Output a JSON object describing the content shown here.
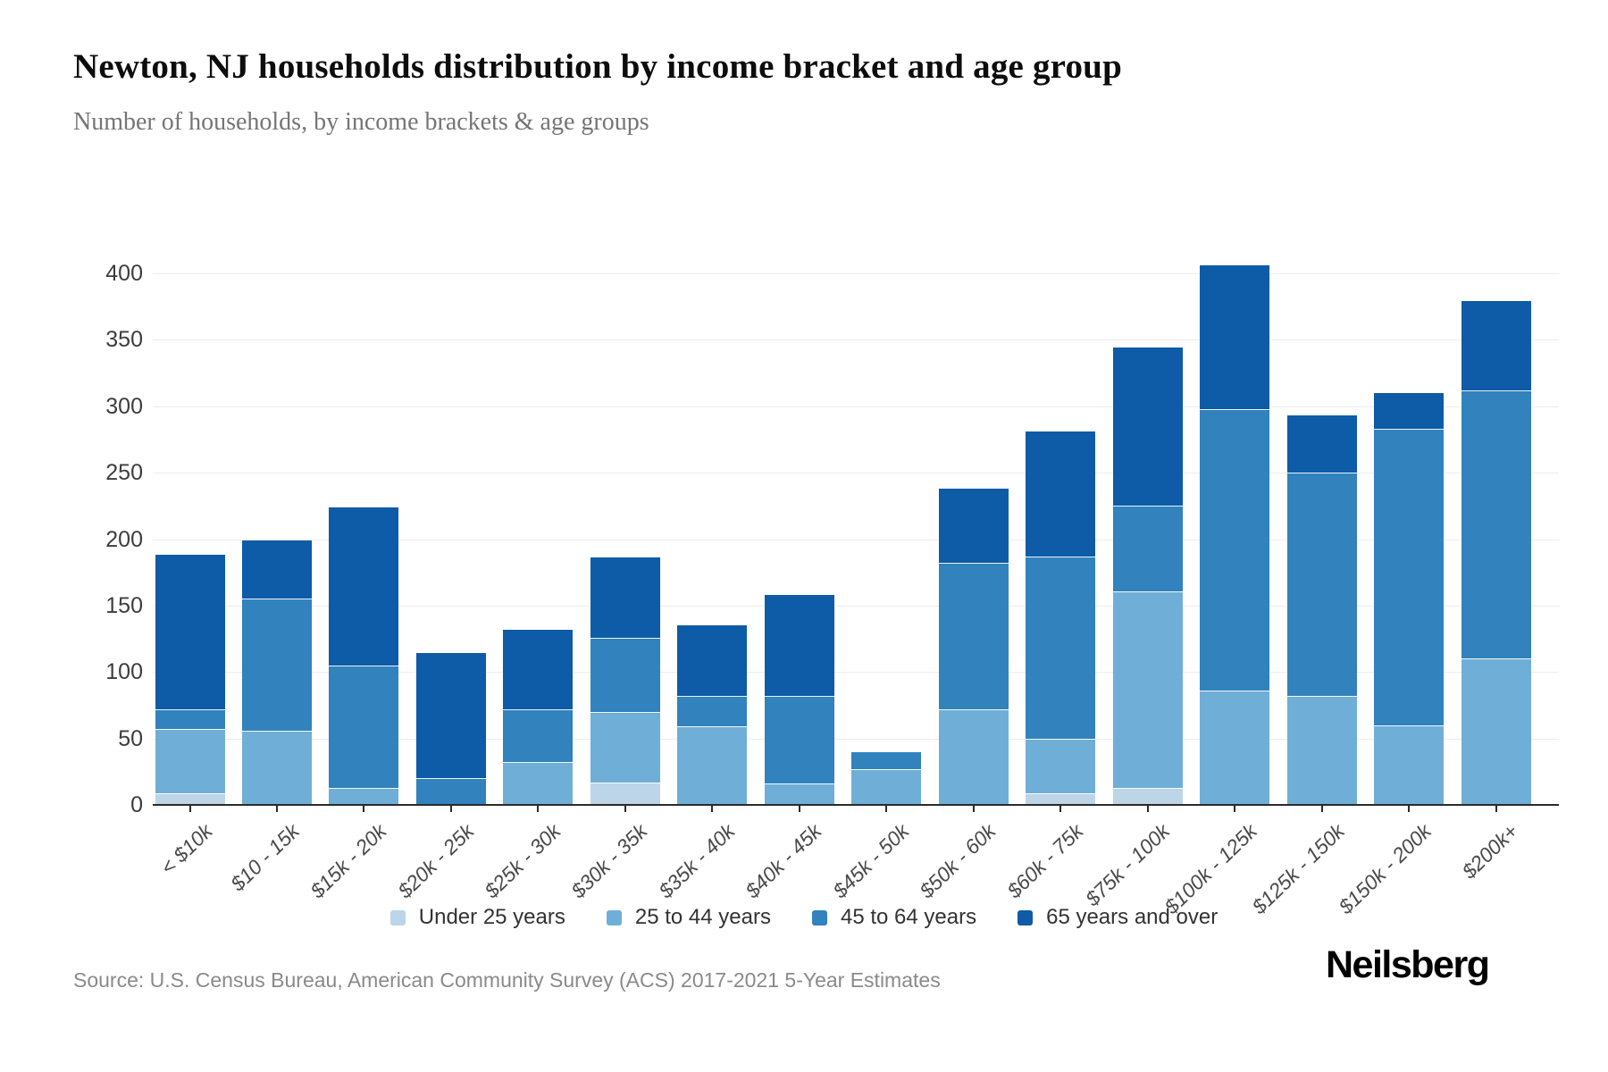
{
  "header": {
    "title": "Newton, NJ households distribution by income bracket and age group",
    "subtitle": "Number of households, by income brackets & age groups"
  },
  "chart_data": {
    "type": "bar",
    "stacked": true,
    "title": "Newton, NJ households distribution by income bracket and age group",
    "subtitle": "Number of households, by income brackets & age groups",
    "xlabel": "",
    "ylabel": "",
    "ylim": [
      0,
      400
    ],
    "ytick_step": 50,
    "grid": true,
    "legend_position": "bottom",
    "categories": [
      "< $10k",
      "$10 - 15k",
      "$15k - 20k",
      "$20k - 25k",
      "$25k - 30k",
      "$30k - 35k",
      "$35k - 40k",
      "$40k - 45k",
      "$45k - 50k",
      "$50k - 60k",
      "$60k - 75k",
      "$75k - 100k",
      "$100k - 125k",
      "$125k - 150k",
      "$150k - 200k",
      "$200k+"
    ],
    "series": [
      {
        "name": "Under 25 years",
        "color": "#bcd5e9",
        "values": [
          9,
          0,
          0,
          0,
          0,
          17,
          0,
          0,
          0,
          0,
          9,
          13,
          0,
          0,
          0,
          0
        ]
      },
      {
        "name": "25 to 44 years",
        "color": "#6fafd7",
        "values": [
          48,
          56,
          13,
          0,
          32,
          53,
          59,
          16,
          27,
          72,
          41,
          148,
          86,
          82,
          60,
          110
        ]
      },
      {
        "name": "45 to 64 years",
        "color": "#3182bd",
        "values": [
          15,
          99,
          92,
          20,
          40,
          56,
          23,
          66,
          13,
          110,
          137,
          64,
          212,
          168,
          223,
          202
        ]
      },
      {
        "name": "65 years and over",
        "color": "#0e5ba7",
        "values": [
          116,
          44,
          119,
          94,
          60,
          60,
          53,
          76,
          0,
          56,
          94,
          119,
          108,
          43,
          27,
          67
        ]
      }
    ],
    "totals": [
      188,
      199,
      224,
      114,
      132,
      186,
      135,
      158,
      40,
      238,
      281,
      344,
      406,
      293,
      310,
      379
    ]
  },
  "footer": {
    "source": "Source: U.S. Census Bureau, American Community Survey (ACS) 2017-2021 5-Year Estimates",
    "logo": "Neilsberg"
  }
}
